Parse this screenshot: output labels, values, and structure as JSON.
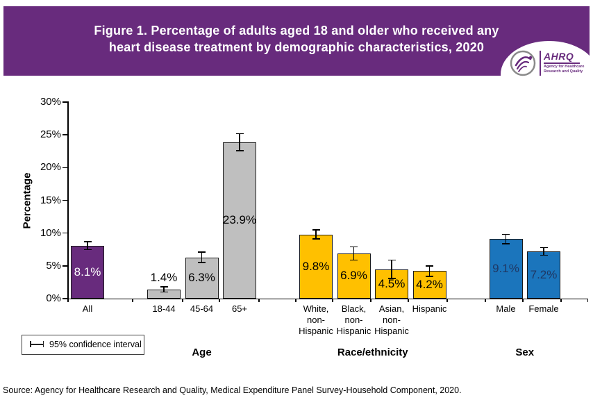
{
  "header": {
    "title_line1": "Figure 1. Percentage of adults aged 18 and older who received any",
    "title_line2": "heart disease treatment by demographic characteristics, 2020",
    "logo": {
      "acronym": "AHRQ",
      "tagline_line1": "Agency for Healthcare",
      "tagline_line2": "Research and Quality"
    }
  },
  "colors": {
    "header_bg": "#682B7D",
    "purple": "#682B7D",
    "gray": "#BFBFBF",
    "gold": "#FFC000",
    "blue": "#1B75BC",
    "axis": "#000000"
  },
  "chart_data": {
    "type": "bar",
    "title": "Figure 1. Percentage of adults aged 18 and older who received any heart disease treatment by demographic characteristics, 2020",
    "ylabel": "Percentage",
    "xlabel": "",
    "ylim": [
      0,
      30
    ],
    "yticks": [
      "0%",
      "5%",
      "10%",
      "15%",
      "20%",
      "25%",
      "30%"
    ],
    "grid": false,
    "legend_label": "95% confidence interval",
    "legend_position": "bottom-left",
    "groups": [
      {
        "name": "",
        "bars": [
          {
            "label": [
              "All"
            ],
            "value": 8.1,
            "display": "8.1%",
            "ci": 0.6,
            "color_key": "purple",
            "text_color": "#FFFFFF",
            "label_placement": "inside"
          }
        ]
      },
      {
        "name": "Age",
        "bars": [
          {
            "label": [
              "18-44"
            ],
            "value": 1.4,
            "display": "1.4%",
            "ci": 0.4,
            "color_key": "gray",
            "text_color": "#000000",
            "label_placement": "above"
          },
          {
            "label": [
              "45-64"
            ],
            "value": 6.3,
            "display": "6.3%",
            "ci": 0.8,
            "color_key": "gray",
            "text_color": "#000000",
            "label_placement": "inside"
          },
          {
            "label": [
              "65+"
            ],
            "value": 23.9,
            "display": "23.9%",
            "ci": 1.3,
            "color_key": "gray",
            "text_color": "#000000",
            "label_placement": "inside"
          }
        ]
      },
      {
        "name": "Race/ethnicity",
        "bars": [
          {
            "label": [
              "White,",
              "non-",
              "Hispanic"
            ],
            "value": 9.8,
            "display": "9.8%",
            "ci": 0.7,
            "color_key": "gold",
            "text_color": "#000000",
            "label_placement": "inside"
          },
          {
            "label": [
              "Black,",
              "non-",
              "Hispanic"
            ],
            "value": 6.9,
            "display": "6.9%",
            "ci": 1.0,
            "color_key": "gold",
            "text_color": "#000000",
            "label_placement": "inside"
          },
          {
            "label": [
              "Asian,",
              "non-",
              "Hispanic"
            ],
            "value": 4.5,
            "display": "4.5%",
            "ci": 1.4,
            "color_key": "gold",
            "text_color": "#000000",
            "label_placement": "inside"
          },
          {
            "label": [
              "Hispanic"
            ],
            "value": 4.2,
            "display": "4.2%",
            "ci": 0.8,
            "color_key": "gold",
            "text_color": "#000000",
            "label_placement": "inside"
          }
        ]
      },
      {
        "name": "Sex",
        "bars": [
          {
            "label": [
              "Male"
            ],
            "value": 9.1,
            "display": "9.1%",
            "ci": 0.7,
            "color_key": "blue",
            "text_color": "#1F3864",
            "label_placement": "inside"
          },
          {
            "label": [
              "Female"
            ],
            "value": 7.2,
            "display": "7.2%",
            "ci": 0.6,
            "color_key": "blue",
            "text_color": "#1F3864",
            "label_placement": "inside"
          }
        ]
      }
    ]
  },
  "source": "Source: Agency for Healthcare Research and Quality, Medical Expenditure Panel Survey-Household Component, 2020."
}
